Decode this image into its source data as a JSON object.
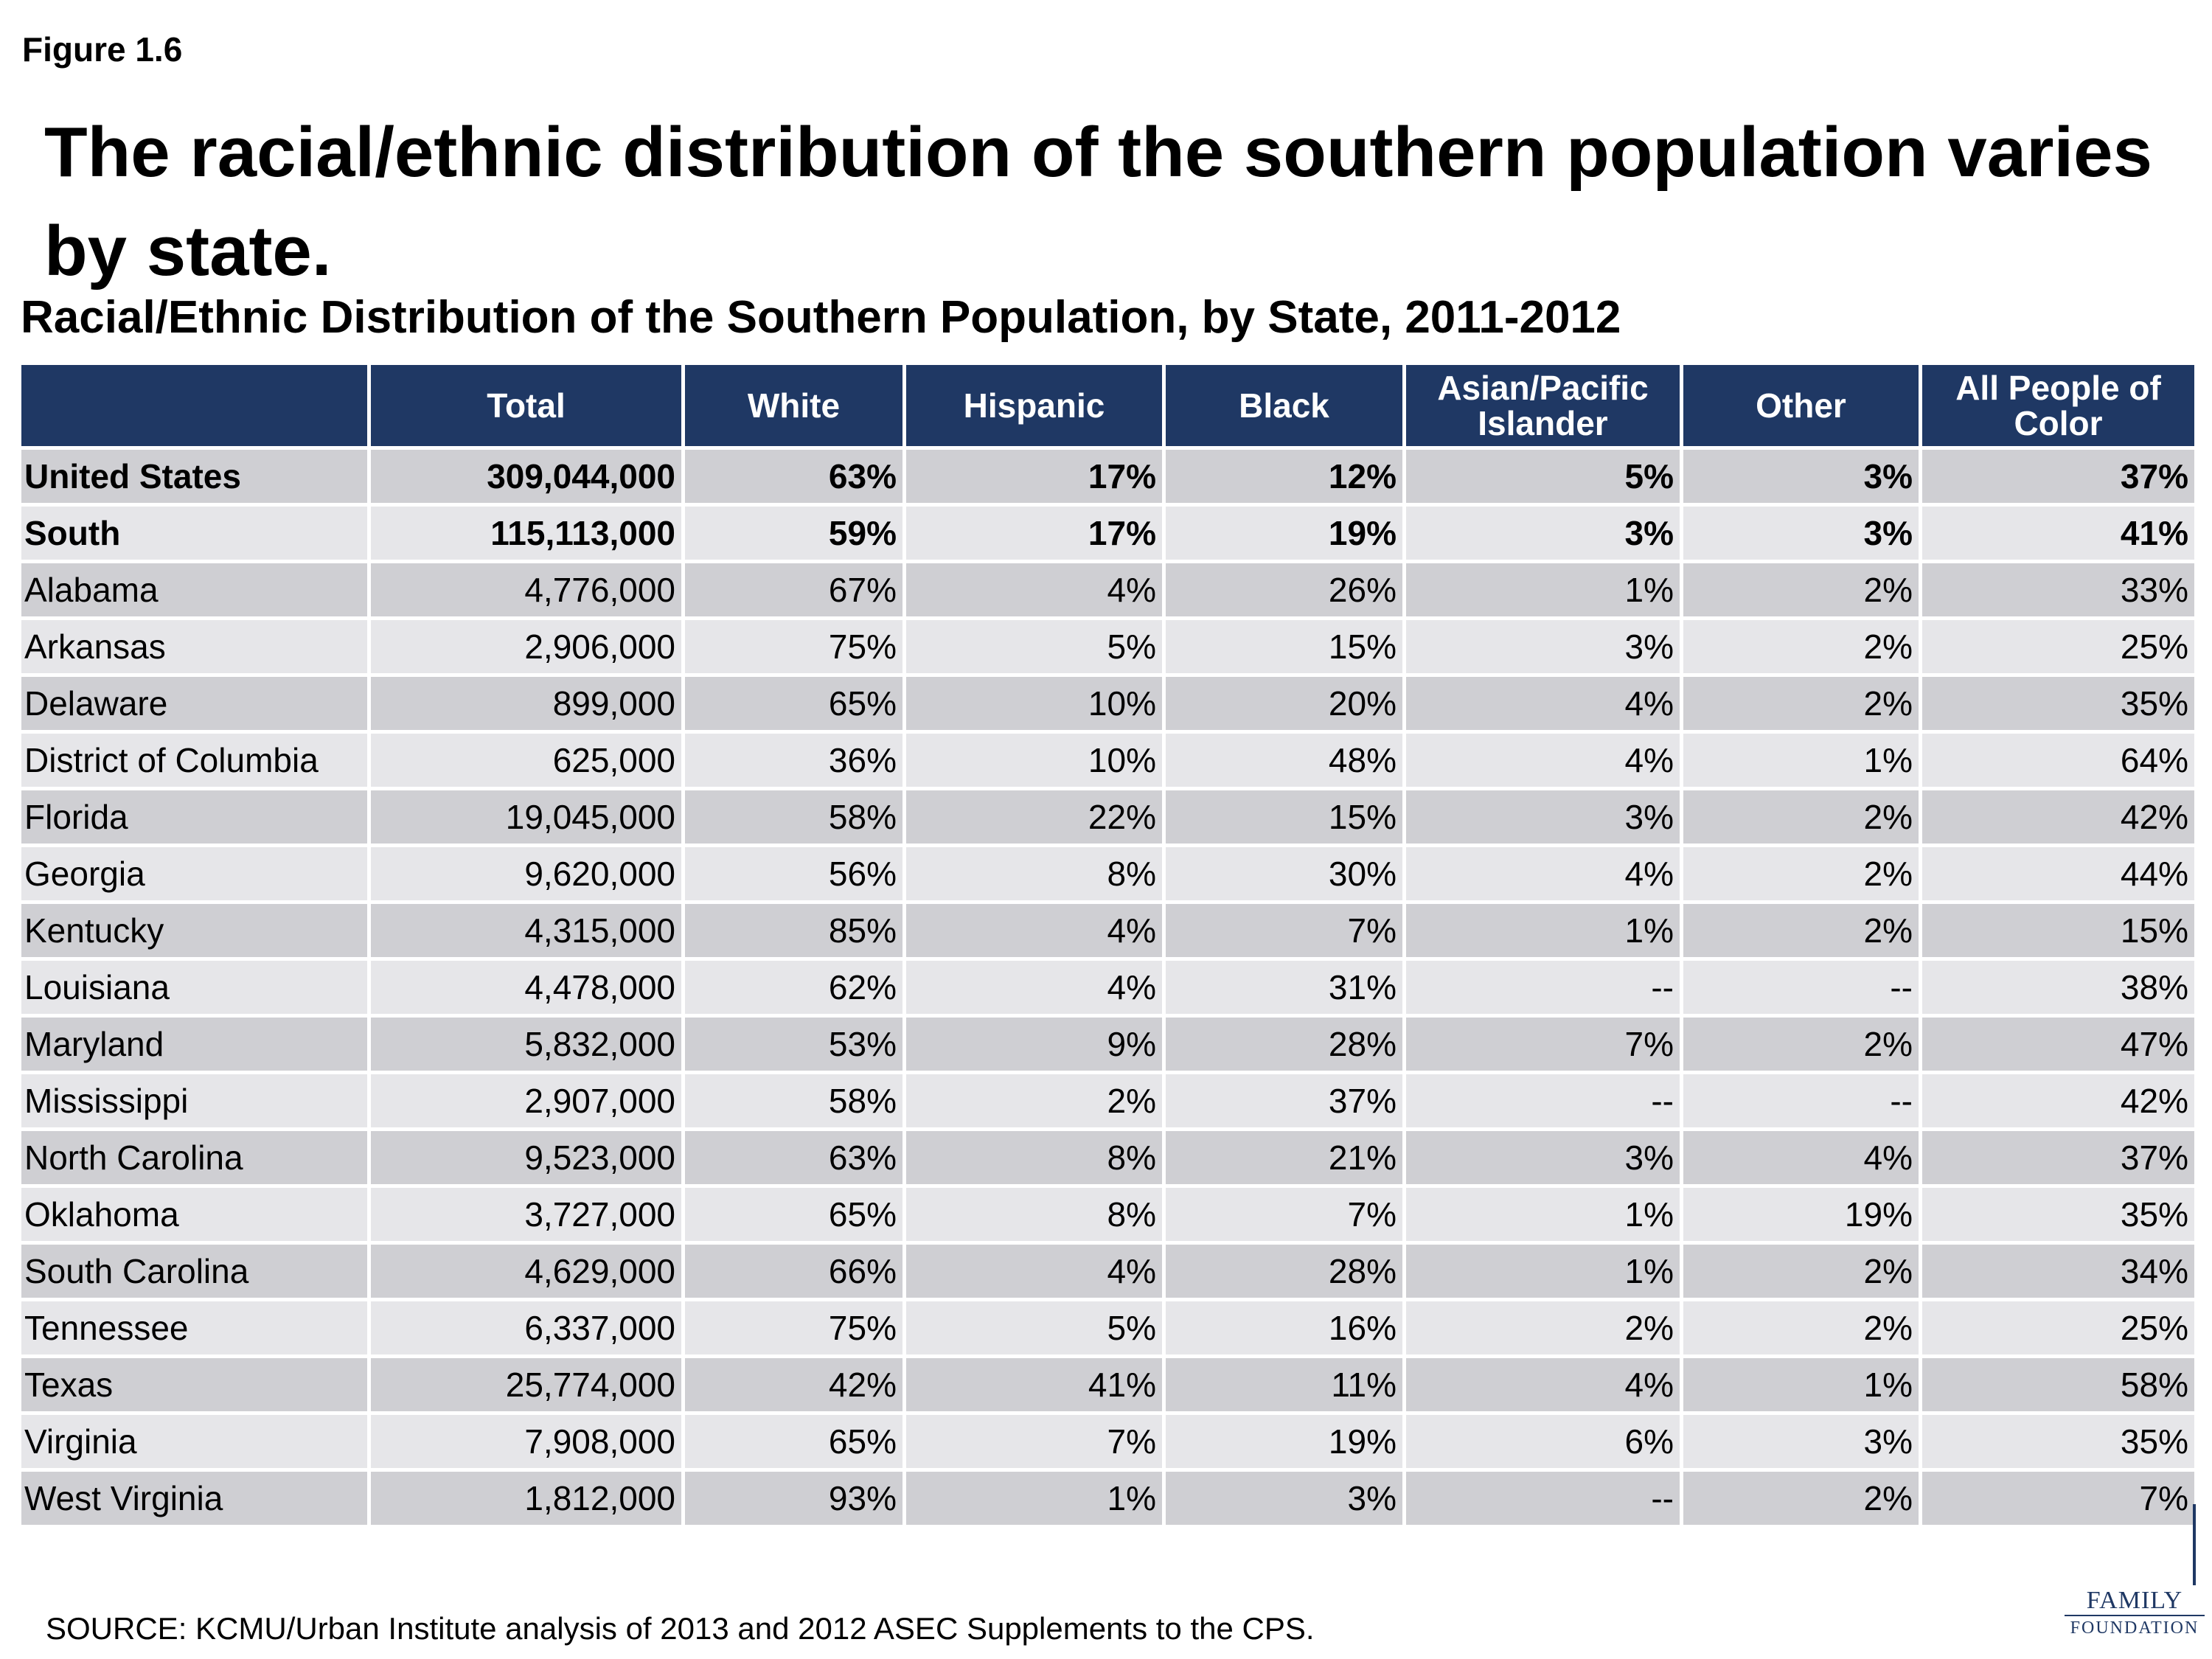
{
  "figure_label": "Figure 1.6",
  "headline": "The racial/ethnic distribution of the southern population varies by state.",
  "chart_data": {
    "type": "table",
    "title": "Racial/Ethnic Distribution of the Southern Population, by State, 2011-2012",
    "columns": [
      "",
      "Total",
      "White",
      "Hispanic",
      "Black",
      "Asian/Pacific Islander",
      "Other",
      "All People of Color"
    ],
    "rows": [
      {
        "label": "United States",
        "bold": true,
        "values": [
          "309,044,000",
          "63%",
          "17%",
          "12%",
          "5%",
          "3%",
          "37%"
        ]
      },
      {
        "label": "South",
        "bold": true,
        "values": [
          "115,113,000",
          "59%",
          "17%",
          "19%",
          "3%",
          "3%",
          "41%"
        ]
      },
      {
        "label": "Alabama",
        "bold": false,
        "values": [
          "4,776,000",
          "67%",
          "4%",
          "26%",
          "1%",
          "2%",
          "33%"
        ]
      },
      {
        "label": "Arkansas",
        "bold": false,
        "values": [
          "2,906,000",
          "75%",
          "5%",
          "15%",
          "3%",
          "2%",
          "25%"
        ]
      },
      {
        "label": "Delaware",
        "bold": false,
        "values": [
          "899,000",
          "65%",
          "10%",
          "20%",
          "4%",
          "2%",
          "35%"
        ]
      },
      {
        "label": "District of Columbia",
        "bold": false,
        "values": [
          "625,000",
          "36%",
          "10%",
          "48%",
          "4%",
          "1%",
          "64%"
        ]
      },
      {
        "label": "Florida",
        "bold": false,
        "values": [
          "19,045,000",
          "58%",
          "22%",
          "15%",
          "3%",
          "2%",
          "42%"
        ]
      },
      {
        "label": "Georgia",
        "bold": false,
        "values": [
          "9,620,000",
          "56%",
          "8%",
          "30%",
          "4%",
          "2%",
          "44%"
        ]
      },
      {
        "label": "Kentucky",
        "bold": false,
        "values": [
          "4,315,000",
          "85%",
          "4%",
          "7%",
          "1%",
          "2%",
          "15%"
        ]
      },
      {
        "label": "Louisiana",
        "bold": false,
        "values": [
          "4,478,000",
          "62%",
          "4%",
          "31%",
          "--",
          "--",
          "38%"
        ]
      },
      {
        "label": "Maryland",
        "bold": false,
        "values": [
          "5,832,000",
          "53%",
          "9%",
          "28%",
          "7%",
          "2%",
          "47%"
        ]
      },
      {
        "label": "Mississippi",
        "bold": false,
        "values": [
          "2,907,000",
          "58%",
          "2%",
          "37%",
          "--",
          "--",
          "42%"
        ]
      },
      {
        "label": "North Carolina",
        "bold": false,
        "values": [
          "9,523,000",
          "63%",
          "8%",
          "21%",
          "3%",
          "4%",
          "37%"
        ]
      },
      {
        "label": "Oklahoma",
        "bold": false,
        "values": [
          "3,727,000",
          "65%",
          "8%",
          "7%",
          "1%",
          "19%",
          "35%"
        ]
      },
      {
        "label": "South Carolina",
        "bold": false,
        "values": [
          "4,629,000",
          "66%",
          "4%",
          "28%",
          "1%",
          "2%",
          "34%"
        ]
      },
      {
        "label": "Tennessee",
        "bold": false,
        "values": [
          "6,337,000",
          "75%",
          "5%",
          "16%",
          "2%",
          "2%",
          "25%"
        ]
      },
      {
        "label": "Texas",
        "bold": false,
        "values": [
          "25,774,000",
          "42%",
          "41%",
          "11%",
          "4%",
          "1%",
          "58%"
        ]
      },
      {
        "label": "Virginia",
        "bold": false,
        "values": [
          "7,908,000",
          "65%",
          "7%",
          "19%",
          "6%",
          "3%",
          "35%"
        ]
      },
      {
        "label": "West Virginia",
        "bold": false,
        "values": [
          "1,812,000",
          "93%",
          "1%",
          "3%",
          "--",
          "2%",
          "7%"
        ]
      }
    ]
  },
  "source": "SOURCE: KCMU/Urban Institute analysis of 2013 and 2012 ASEC Supplements to the CPS.",
  "logo": {
    "top": "FAMILY",
    "bottom": "FOUNDATION"
  },
  "colors": {
    "header_bg": "#1f3864",
    "row_dark": "#cfcfd3",
    "row_light": "#e6e6e9"
  }
}
